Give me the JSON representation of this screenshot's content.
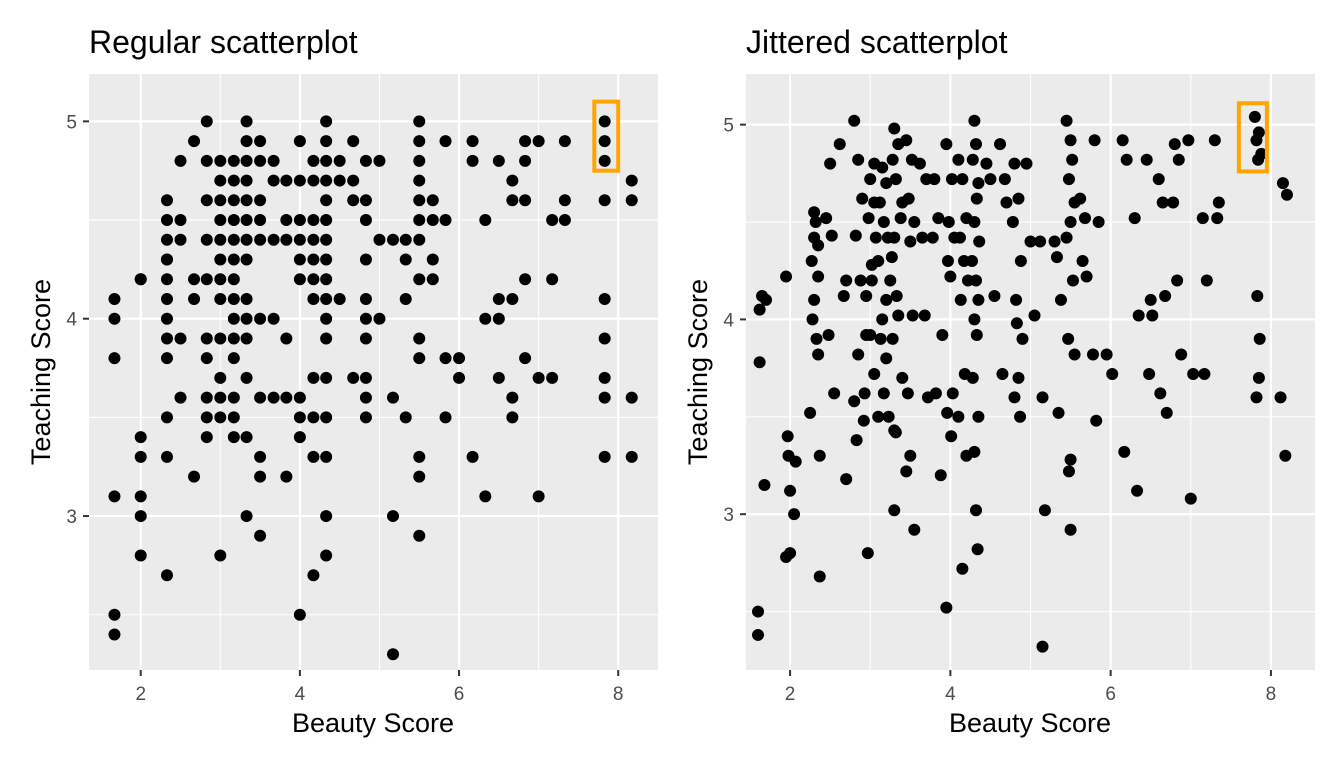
{
  "chart_data": [
    {
      "type": "scatter",
      "title": "Regular scatterplot",
      "xlabel": "Beauty Score",
      "ylabel": "Teaching Score",
      "xlim": [
        1.35,
        8.5
      ],
      "ylim": [
        2.22,
        5.24
      ],
      "xticks": [
        2,
        4,
        6,
        8
      ],
      "yticks": [
        3,
        4,
        5
      ],
      "grid": true,
      "highlight": {
        "color": "#FFA500",
        "x_range": [
          7.7,
          8.0
        ],
        "y_range": [
          4.75,
          5.1
        ]
      },
      "series": [
        {
          "x": [
            1.67,
            1.67,
            1.67,
            1.67,
            1.67,
            1.67,
            2.0,
            2.0,
            2.0,
            2.0,
            2.0,
            2.0,
            2.0,
            2.33,
            2.33,
            2.33,
            2.33,
            2.33,
            2.33,
            2.33,
            2.33,
            2.33,
            2.33,
            2.33,
            2.33,
            2.33,
            2.5,
            2.5,
            2.5,
            2.5,
            2.5,
            2.67,
            2.67,
            2.67,
            2.67,
            2.83,
            2.83,
            2.83,
            2.83,
            2.83,
            2.83,
            2.83,
            2.83,
            2.83,
            2.83,
            3.0,
            3.0,
            3.0,
            3.0,
            3.0,
            3.0,
            3.0,
            3.0,
            3.0,
            3.0,
            3.0,
            3.0,
            3.0,
            3.17,
            3.17,
            3.17,
            3.17,
            3.17,
            3.17,
            3.17,
            3.17,
            3.17,
            3.17,
            3.17,
            3.17,
            3.17,
            3.17,
            3.33,
            3.33,
            3.33,
            3.33,
            3.33,
            3.33,
            3.33,
            3.33,
            3.33,
            3.33,
            3.33,
            3.33,
            3.33,
            3.33,
            3.5,
            3.5,
            3.5,
            3.5,
            3.5,
            3.5,
            3.5,
            3.5,
            3.5,
            3.5,
            3.67,
            3.67,
            3.67,
            3.67,
            3.67,
            3.83,
            3.83,
            3.83,
            3.83,
            3.83,
            3.83,
            4.0,
            4.0,
            4.0,
            4.0,
            4.0,
            4.0,
            4.0,
            4.0,
            4.0,
            4.0,
            4.17,
            4.17,
            4.17,
            4.17,
            4.17,
            4.17,
            4.17,
            4.17,
            4.17,
            4.17,
            4.17,
            4.33,
            4.33,
            4.33,
            4.33,
            4.33,
            4.33,
            4.33,
            4.33,
            4.33,
            4.33,
            4.33,
            4.33,
            4.33,
            4.33,
            4.33,
            4.33,
            4.33,
            4.5,
            4.5,
            4.5,
            4.67,
            4.67,
            4.67,
            4.67,
            4.83,
            4.83,
            4.83,
            4.83,
            4.83,
            4.83,
            4.83,
            4.83,
            4.83,
            4.83,
            5.0,
            5.0,
            5.0,
            5.17,
            5.17,
            5.17,
            5.17,
            5.33,
            5.33,
            5.33,
            5.33,
            5.5,
            5.5,
            5.5,
            5.5,
            5.5,
            5.5,
            5.5,
            5.5,
            5.5,
            5.5,
            5.5,
            5.5,
            5.5,
            5.67,
            5.67,
            5.67,
            5.67,
            5.83,
            5.83,
            5.83,
            5.83,
            6.0,
            6.0,
            6.17,
            6.17,
            6.17,
            6.33,
            6.33,
            6.33,
            6.5,
            6.5,
            6.5,
            6.5,
            6.67,
            6.67,
            6.67,
            6.67,
            6.67,
            6.83,
            6.83,
            6.83,
            6.83,
            6.83,
            7.0,
            7.0,
            7.0,
            7.17,
            7.17,
            7.17,
            7.33,
            7.33,
            7.33,
            7.83,
            7.83,
            7.83,
            7.83,
            7.83,
            7.83,
            7.83,
            7.83,
            7.83,
            8.17,
            8.17,
            8.17,
            8.17
          ],
          "y": [
            4.1,
            4.0,
            3.8,
            3.1,
            2.5,
            2.4,
            4.2,
            3.4,
            3.3,
            3.1,
            3.0,
            2.8,
            4.2,
            4.6,
            4.5,
            4.3,
            4.2,
            4.1,
            4.0,
            3.9,
            3.8,
            3.5,
            3.3,
            2.7,
            4.4,
            4.3,
            4.8,
            4.5,
            4.4,
            3.9,
            3.6,
            4.9,
            4.2,
            4.1,
            3.2,
            5.0,
            4.8,
            4.6,
            4.4,
            4.2,
            3.9,
            3.8,
            3.6,
            3.5,
            3.4,
            4.7,
            4.6,
            4.5,
            4.4,
            4.3,
            4.1,
            3.9,
            3.7,
            3.6,
            3.5,
            2.8,
            4.8,
            4.2,
            4.8,
            4.7,
            4.6,
            4.5,
            4.4,
            4.3,
            4.2,
            4.1,
            4.0,
            3.9,
            3.8,
            3.6,
            3.5,
            3.4,
            5.0,
            4.9,
            4.8,
            4.7,
            4.6,
            4.5,
            4.4,
            4.3,
            4.1,
            4.0,
            3.9,
            3.7,
            3.4,
            3.0,
            4.9,
            4.8,
            4.6,
            4.5,
            4.4,
            4.0,
            3.6,
            3.3,
            3.2,
            2.9,
            4.8,
            4.7,
            4.4,
            4.0,
            3.6,
            4.7,
            4.5,
            4.4,
            3.9,
            3.6,
            3.2,
            4.9,
            4.7,
            4.5,
            4.4,
            4.3,
            4.2,
            3.6,
            3.5,
            3.4,
            2.5,
            4.8,
            4.7,
            4.5,
            4.4,
            4.3,
            4.2,
            4.1,
            3.7,
            3.5,
            3.3,
            2.7,
            5.0,
            4.9,
            4.8,
            4.7,
            4.6,
            4.5,
            4.4,
            4.3,
            4.2,
            4.1,
            4.0,
            3.9,
            3.7,
            3.5,
            3.3,
            3.0,
            2.8,
            4.8,
            4.7,
            4.1,
            4.9,
            4.7,
            4.6,
            3.7,
            4.8,
            4.6,
            4.5,
            4.3,
            4.1,
            3.9,
            3.7,
            3.6,
            3.5,
            4.0,
            4.8,
            4.4,
            4.0,
            4.4,
            3.6,
            3.0,
            2.3,
            4.4,
            4.1,
            3.5,
            4.3,
            5.0,
            4.9,
            4.8,
            4.7,
            4.6,
            4.5,
            4.4,
            4.2,
            3.9,
            3.8,
            3.3,
            3.2,
            2.9,
            4.6,
            4.5,
            4.3,
            4.2,
            4.9,
            4.5,
            3.8,
            3.5,
            3.8,
            3.7,
            4.9,
            4.8,
            3.3,
            4.5,
            4.0,
            3.1,
            4.8,
            4.1,
            4.0,
            3.7,
            4.7,
            4.6,
            4.1,
            3.6,
            3.5,
            4.9,
            4.8,
            4.6,
            4.2,
            3.8,
            4.9,
            3.7,
            3.1,
            4.5,
            4.2,
            3.7,
            4.9,
            4.6,
            4.5,
            5.0,
            4.9,
            4.8,
            4.6,
            4.1,
            3.9,
            3.7,
            3.6,
            3.3,
            4.7,
            4.6,
            3.6,
            3.3
          ]
        }
      ]
    },
    {
      "type": "scatter",
      "title": "Jittered scatterplot",
      "xlabel": "Beauty Score",
      "ylabel": "Teaching Score",
      "xlim": [
        1.45,
        8.55
      ],
      "ylim": [
        2.2,
        5.26
      ],
      "xticks": [
        2,
        4,
        6,
        8
      ],
      "yticks": [
        3,
        4,
        5
      ],
      "grid": true,
      "jitter": {
        "x": 0.15,
        "y": 0.05
      },
      "highlight": {
        "color": "#FFA500",
        "x_range": [
          7.6,
          7.95
        ],
        "y_range": [
          4.76,
          5.11
        ]
      },
      "series": [
        {
          "x": [
            1.6,
            1.6,
            1.65,
            1.62,
            1.7,
            1.68,
            1.62,
            1.95,
            1.97,
            1.98,
            2.0,
            2.05,
            2.0,
            1.95,
            2.07,
            2.3,
            2.32,
            2.27,
            2.35,
            2.3,
            2.28,
            2.33,
            2.35,
            2.25,
            2.37,
            2.37,
            2.35,
            2.3,
            2.5,
            2.45,
            2.52,
            2.48,
            2.55,
            2.62,
            2.7,
            2.67,
            2.7,
            2.8,
            2.85,
            2.9,
            2.82,
            2.88,
            2.95,
            2.85,
            2.8,
            2.92,
            2.83,
            3.0,
            3.05,
            2.98,
            3.07,
            3.02,
            2.95,
            3.0,
            3.05,
            2.93,
            3.1,
            2.97,
            3.05,
            3.02,
            3.15,
            3.2,
            3.12,
            3.17,
            3.22,
            3.1,
            3.25,
            3.2,
            3.15,
            3.13,
            3.2,
            3.17,
            3.23,
            3.3,
            3.3,
            3.35,
            3.28,
            3.32,
            3.4,
            3.38,
            3.3,
            3.27,
            3.33,
            3.35,
            3.28,
            3.4,
            3.32,
            3.3,
            3.45,
            3.52,
            3.48,
            3.55,
            3.5,
            3.53,
            3.47,
            3.5,
            3.45,
            3.55,
            3.62,
            3.7,
            3.65,
            3.68,
            3.72,
            3.8,
            3.85,
            3.78,
            3.9,
            3.82,
            3.88,
            3.95,
            4.02,
            3.98,
            4.05,
            3.97,
            4.0,
            4.03,
            3.96,
            4.01,
            3.95,
            4.1,
            4.15,
            4.2,
            4.12,
            4.17,
            4.22,
            4.13,
            4.18,
            4.1,
            4.2,
            4.15,
            4.3,
            4.32,
            4.28,
            4.35,
            4.33,
            4.3,
            4.36,
            4.27,
            4.32,
            4.35,
            4.3,
            4.33,
            4.28,
            4.35,
            4.3,
            4.32,
            4.34,
            4.45,
            4.5,
            4.55,
            4.62,
            4.68,
            4.7,
            4.65,
            4.8,
            4.85,
            4.78,
            4.88,
            4.82,
            4.9,
            4.85,
            4.8,
            4.87,
            4.83,
            4.95,
            5.0,
            5.05,
            5.12,
            5.15,
            5.18,
            5.15,
            5.3,
            5.38,
            5.35,
            5.33,
            5.45,
            5.5,
            5.52,
            5.48,
            5.55,
            5.5,
            5.45,
            5.53,
            5.47,
            5.55,
            5.5,
            5.48,
            5.5,
            5.62,
            5.68,
            5.65,
            5.7,
            5.8,
            5.85,
            5.78,
            5.82,
            5.95,
            6.02,
            6.15,
            6.2,
            6.17,
            6.3,
            6.35,
            6.33,
            6.45,
            6.5,
            6.52,
            6.48,
            6.6,
            6.65,
            6.68,
            6.62,
            6.7,
            6.8,
            6.85,
            6.78,
            6.83,
            6.88,
            6.97,
            7.03,
            7.0,
            7.15,
            7.2,
            7.17,
            7.3,
            7.35,
            7.33,
            7.8,
            7.85,
            7.82,
            7.88,
            7.84,
            7.83,
            7.86,
            7.85,
            7.82,
            8.15,
            8.2,
            8.12,
            8.18
          ],
          "y": [
            2.5,
            2.38,
            4.12,
            4.05,
            4.1,
            3.15,
            3.78,
            4.22,
            3.4,
            3.3,
            3.12,
            3.0,
            2.8,
            2.78,
            3.27,
            4.55,
            4.5,
            4.3,
            4.22,
            4.1,
            4.0,
            3.9,
            3.82,
            3.52,
            3.3,
            2.68,
            4.38,
            4.42,
            4.8,
            4.52,
            4.43,
            3.92,
            3.62,
            4.9,
            4.2,
            4.12,
            3.18,
            5.02,
            4.82,
            4.62,
            4.43,
            4.2,
            3.92,
            3.82,
            3.58,
            3.48,
            3.38,
            4.72,
            4.6,
            4.52,
            4.42,
            4.28,
            4.12,
            3.92,
            3.72,
            3.62,
            3.5,
            2.8,
            4.8,
            4.2,
            4.78,
            4.7,
            4.6,
            4.5,
            4.42,
            4.3,
            4.2,
            4.1,
            4.0,
            3.9,
            3.8,
            3.62,
            3.5,
            3.43,
            4.98,
            4.9,
            4.82,
            4.72,
            4.6,
            4.52,
            4.42,
            4.32,
            4.12,
            4.02,
            3.9,
            3.7,
            3.42,
            3.02,
            4.92,
            4.82,
            4.62,
            4.5,
            4.4,
            4.02,
            3.62,
            3.3,
            3.22,
            2.92,
            4.8,
            4.72,
            4.42,
            4.02,
            3.6,
            4.72,
            4.52,
            4.42,
            3.92,
            3.62,
            3.2,
            4.9,
            4.72,
            4.5,
            4.42,
            4.3,
            4.22,
            3.62,
            3.52,
            3.4,
            2.52,
            4.82,
            4.72,
            4.52,
            4.42,
            4.3,
            4.2,
            4.1,
            3.72,
            3.5,
            3.3,
            2.72,
            5.02,
            4.9,
            4.82,
            4.7,
            4.62,
            4.5,
            4.4,
            4.3,
            4.2,
            4.1,
            4.0,
            3.92,
            3.7,
            3.5,
            3.32,
            3.02,
            2.82,
            4.8,
            4.72,
            4.12,
            4.9,
            4.72,
            4.6,
            3.72,
            4.8,
            4.62,
            4.5,
            4.3,
            4.1,
            3.9,
            3.7,
            3.6,
            3.5,
            3.98,
            4.8,
            4.4,
            4.02,
            4.4,
            3.6,
            3.02,
            2.32,
            4.4,
            4.1,
            3.52,
            4.32,
            5.02,
            4.92,
            4.82,
            4.72,
            4.6,
            4.5,
            4.42,
            4.2,
            3.9,
            3.82,
            3.28,
            3.22,
            2.92,
            4.62,
            4.52,
            4.3,
            4.22,
            4.92,
            4.5,
            3.82,
            3.48,
            3.82,
            3.72,
            4.92,
            4.82,
            3.32,
            4.52,
            4.02,
            3.12,
            4.82,
            4.1,
            4.02,
            3.72,
            4.72,
            4.6,
            4.12,
            3.62,
            3.52,
            4.9,
            4.82,
            4.6,
            4.2,
            3.82,
            4.92,
            3.72,
            3.08,
            4.52,
            4.2,
            3.72,
            4.92,
            4.6,
            4.52,
            5.04,
            4.96,
            4.92,
            4.85,
            4.82,
            4.12,
            3.9,
            3.7,
            3.6,
            4.7,
            4.64,
            3.6,
            3.3
          ]
        }
      ]
    }
  ]
}
